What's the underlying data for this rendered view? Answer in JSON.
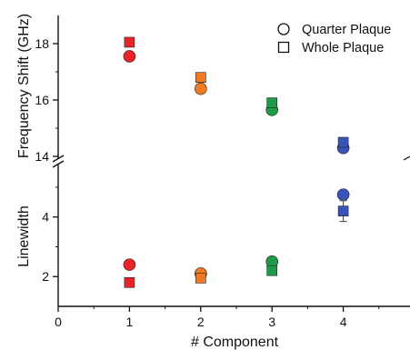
{
  "chart_data": {
    "type": "scatter",
    "layout": "two stacked panels sharing the x axis, broken y axis",
    "xlabel": "# Component",
    "xlim": [
      0,
      5
    ],
    "x_ticks": [
      0,
      1,
      2,
      3,
      4
    ],
    "legend": {
      "position": "top-right",
      "entries": [
        {
          "name": "Quarter Plaque",
          "marker": "circle",
          "filled": false
        },
        {
          "name": "Whole Plaque",
          "marker": "square",
          "filled": false
        }
      ]
    },
    "category_colors": {
      "1": "#e8232a",
      "2": "#f07a22",
      "3": "#1f9a48",
      "4": "#3953b8"
    },
    "panels": [
      {
        "id": "top",
        "ylabel": "Frequency Shift (GHz)",
        "ylim": [
          14,
          19
        ],
        "y_ticks": [
          14,
          16,
          18
        ],
        "series": [
          {
            "name": "Quarter Plaque",
            "marker": "circle",
            "x": [
              1,
              2,
              3,
              4
            ],
            "y": [
              17.55,
              16.4,
              15.65,
              14.3
            ]
          },
          {
            "name": "Whole Plaque",
            "marker": "square",
            "x": [
              1,
              2,
              3,
              4
            ],
            "y": [
              18.05,
              16.8,
              15.9,
              14.5
            ]
          }
        ]
      },
      {
        "id": "bottom",
        "ylabel": "Linewidth",
        "ylim": [
          1,
          5.7
        ],
        "y_ticks": [
          2,
          4
        ],
        "series": [
          {
            "name": "Quarter Plaque",
            "marker": "circle",
            "x": [
              1,
              2,
              3,
              4
            ],
            "y": [
              2.4,
              2.1,
              2.5,
              4.75
            ]
          },
          {
            "name": "Whole Plaque",
            "marker": "square",
            "x": [
              1,
              2,
              3,
              4
            ],
            "y": [
              1.8,
              1.95,
              2.2,
              4.2
            ],
            "error": [
              0,
              0,
              0,
              0.35
            ]
          }
        ]
      }
    ]
  }
}
